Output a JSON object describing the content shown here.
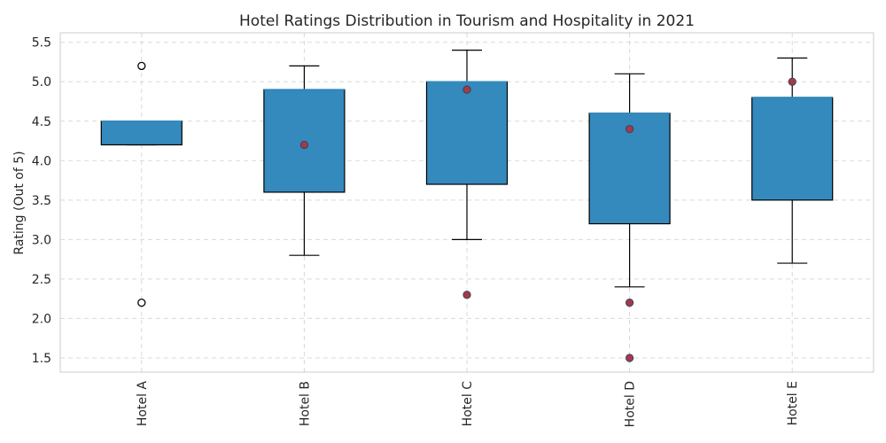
{
  "colors": {
    "box_fill": "#348abd",
    "box_edge": "#000000",
    "median": "#348abd",
    "whisker": "#000000",
    "flier_outline": "#000000",
    "point_fill": "#a23b47",
    "point_edge": "#303a5a",
    "grid": "#d9d9d9",
    "frame": "#cccccc"
  },
  "chart_data": {
    "type": "box",
    "title": "Hotel Ratings Distribution in Tourism and Hospitality in 2021",
    "xlabel": "",
    "ylabel": "Rating (Out of 5)",
    "ylim": [
      1.32,
      5.62
    ],
    "yticks": [
      1.5,
      2.0,
      2.5,
      3.0,
      3.5,
      4.0,
      4.5,
      5.0,
      5.5
    ],
    "ytick_labels": [
      "1.5",
      "2.0",
      "2.5",
      "3.0",
      "3.5",
      "4.0",
      "4.5",
      "5.0",
      "5.5"
    ],
    "grid": true,
    "categories": [
      "Hotel A",
      "Hotel B",
      "Hotel C",
      "Hotel D",
      "Hotel E"
    ],
    "boxes": [
      {
        "whisker_low": 4.2,
        "q1": 4.2,
        "median": 4.5,
        "q3": 4.5,
        "whisker_high": 4.5
      },
      {
        "whisker_low": 2.8,
        "q1": 3.6,
        "median": 4.9,
        "q3": 4.9,
        "whisker_high": 5.2
      },
      {
        "whisker_low": 3.0,
        "q1": 3.7,
        "median": 5.0,
        "q3": 5.0,
        "whisker_high": 5.4
      },
      {
        "whisker_low": 2.4,
        "q1": 3.2,
        "median": 4.6,
        "q3": 4.6,
        "whisker_high": 5.1
      },
      {
        "whisker_low": 2.7,
        "q1": 3.5,
        "median": 4.8,
        "q3": 4.8,
        "whisker_high": 5.3
      }
    ],
    "fliers": [
      {
        "category": "Hotel A",
        "value": 5.2
      },
      {
        "category": "Hotel A",
        "value": 2.2
      }
    ],
    "points": [
      {
        "category": "Hotel B",
        "value": 4.2
      },
      {
        "category": "Hotel C",
        "value": 4.9
      },
      {
        "category": "Hotel C",
        "value": 2.3
      },
      {
        "category": "Hotel D",
        "value": 4.4
      },
      {
        "category": "Hotel D",
        "value": 2.2
      },
      {
        "category": "Hotel D",
        "value": 1.5
      },
      {
        "category": "Hotel E",
        "value": 5.0
      }
    ]
  }
}
